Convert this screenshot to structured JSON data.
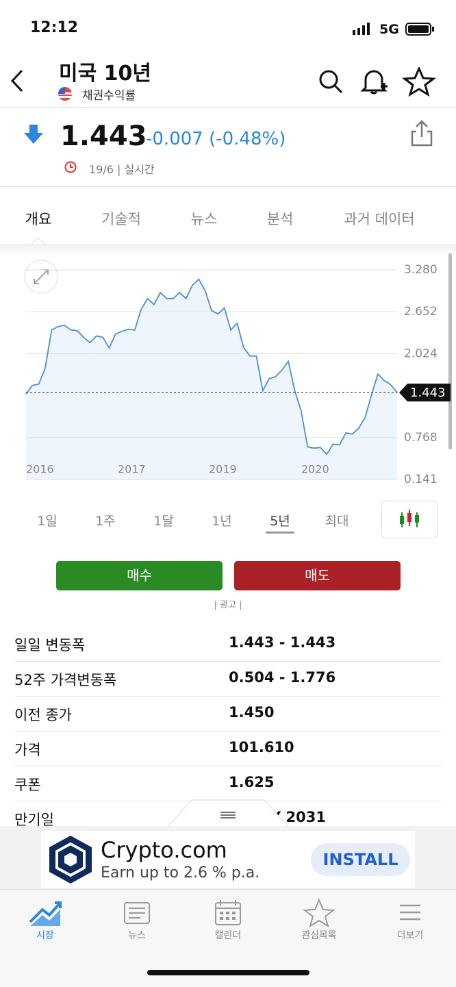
{
  "status": {
    "time": "12:12",
    "network": "5G"
  },
  "header": {
    "title": "미국 10년",
    "subtitle": "채권수익률"
  },
  "quote": {
    "price": "1.443",
    "change": "-0.007 (-0.48%)",
    "date": "19/6 | 실시간"
  },
  "tabs": [
    "개요",
    "기술적",
    "뉴스",
    "분석",
    "과거 데이터"
  ],
  "chart": {
    "type": "line",
    "color": "#4a8fd8",
    "values": [
      1.42,
      1.55,
      1.57,
      1.81,
      2.38,
      2.43,
      2.45,
      2.38,
      2.37,
      2.27,
      2.19,
      2.29,
      2.27,
      2.11,
      2.32,
      2.36,
      2.39,
      2.38,
      2.69,
      2.85,
      2.76,
      2.94,
      2.85,
      2.85,
      2.94,
      2.85,
      3.05,
      3.14,
      2.97,
      2.67,
      2.62,
      2.71,
      2.38,
      2.48,
      2.12,
      1.99,
      1.99,
      1.47,
      1.65,
      1.68,
      1.78,
      1.91,
      1.47,
      1.17,
      0.63,
      0.61,
      0.62,
      0.52,
      0.67,
      0.66,
      0.84,
      0.82,
      0.91,
      1.07,
      1.41,
      1.72,
      1.62,
      1.56,
      1.443
    ],
    "x_labels": [
      "2016",
      "2017",
      "2019",
      "2020"
    ],
    "ylim": [
      0.141,
      3.28
    ],
    "yticks": [
      {
        "value": 3.28,
        "label": "3.280"
      },
      2.652,
      2.024,
      0.768,
      0.141
    ],
    "current": 1.443,
    "grid": true
  },
  "periods": [
    "1일",
    "1주",
    "1달",
    "1년",
    "5년",
    "최대"
  ],
  "selected_period": "5년",
  "buttons": {
    "buy": "매수",
    "sell": "매도",
    "ad": "| 광고 |"
  },
  "table": {
    "rows": [
      [
        "일일 변동폭",
        "1.443 - 1.443"
      ],
      [
        "52주 가격변동폭",
        "0.504 - 1.776"
      ],
      [
        "이전 종가",
        "1.450"
      ],
      [
        "가격",
        "101.610"
      ],
      [
        "쿠폰",
        "1.625"
      ],
      [
        "만기일",
        "15 MAY 2031"
      ]
    ]
  },
  "ad": {
    "brand": "Crypto.com",
    "text": "Earn up to 2.6 % p.a.",
    "cta": "INSTALL"
  },
  "nav": [
    "시장",
    "뉴스",
    "캘린더",
    "관심목록",
    "더보기"
  ]
}
